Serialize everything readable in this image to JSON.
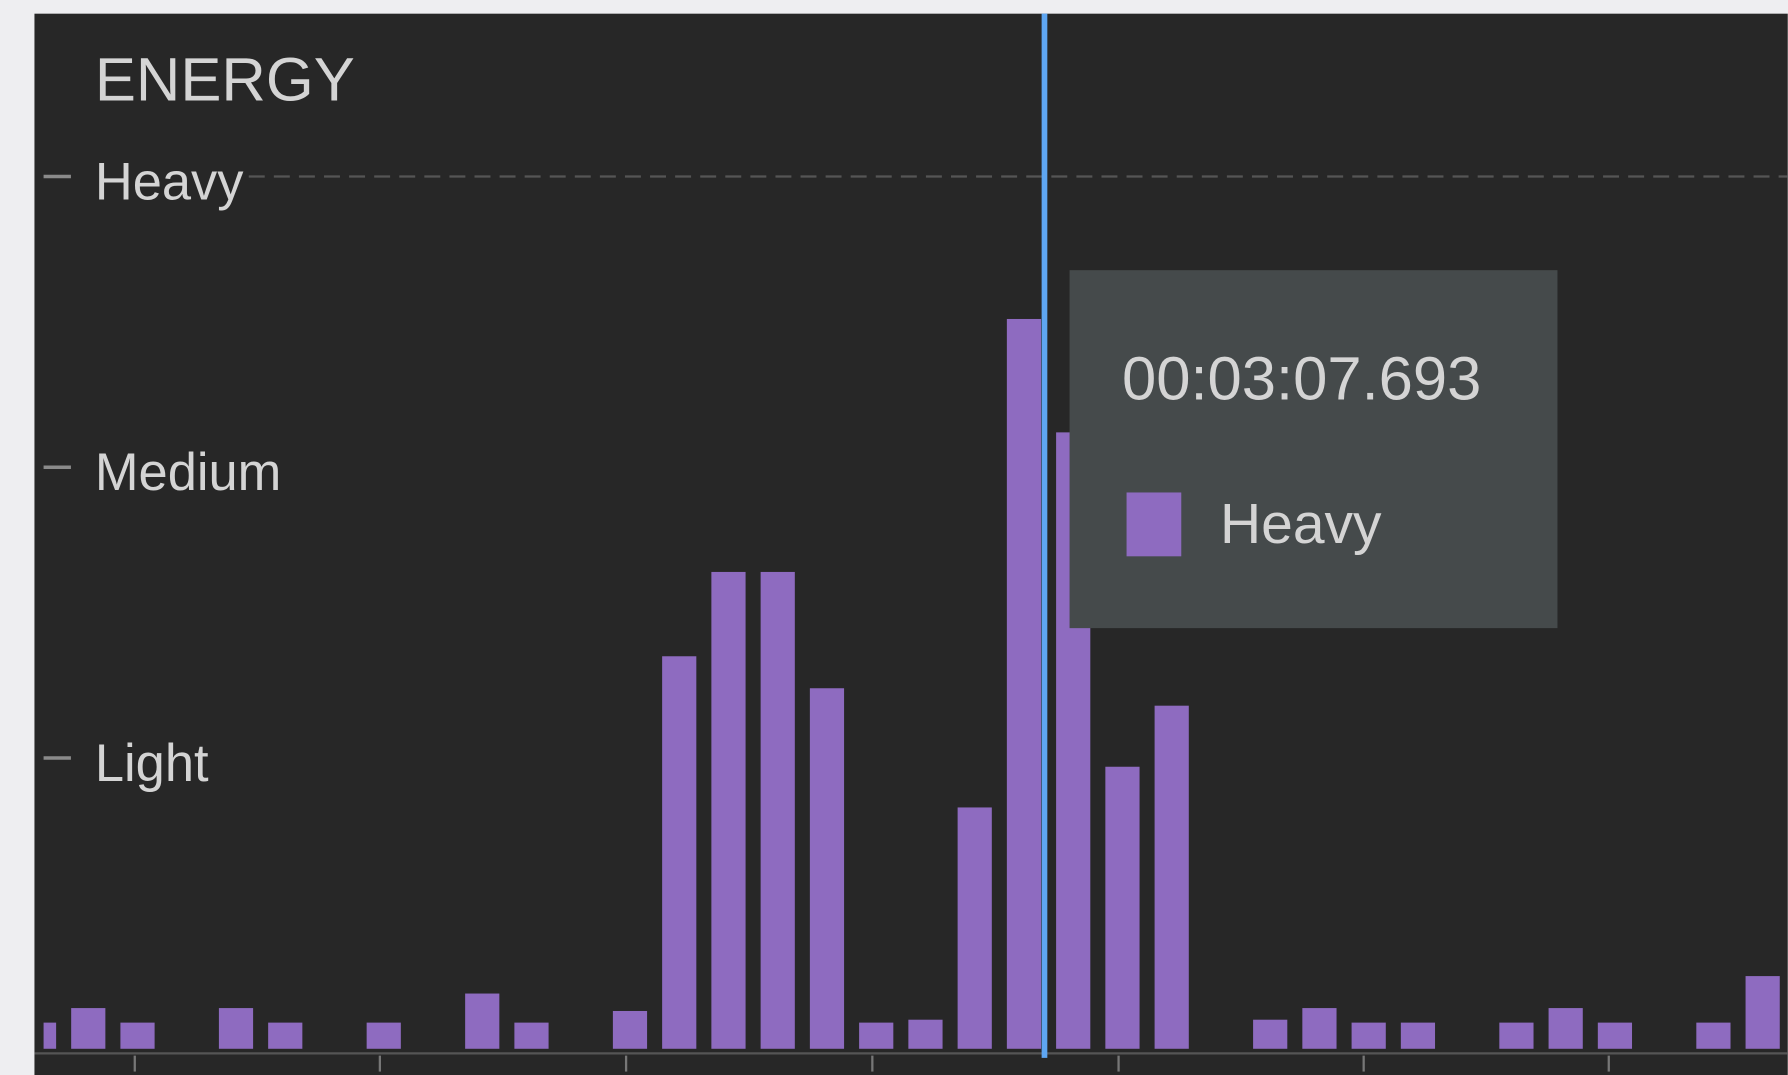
{
  "chart_data": {
    "type": "bar",
    "title": "ENERGY",
    "categories": [
      null,
      null,
      null,
      null,
      null,
      null,
      null,
      null,
      null,
      null,
      null,
      null,
      null,
      null,
      null,
      null,
      null,
      null,
      null,
      null,
      null,
      null,
      null,
      null,
      null,
      null,
      null,
      null,
      null,
      null,
      null,
      null,
      null,
      null,
      null,
      null
    ],
    "values": [
      0.09,
      0.14,
      0.09,
      0,
      0.14,
      0.09,
      0,
      0.09,
      0,
      0.19,
      0.09,
      0,
      0.13,
      1.35,
      1.64,
      1.64,
      1.24,
      0.09,
      0.1,
      0.83,
      2.51,
      2.12,
      0.97,
      1.18,
      0,
      0.1,
      0.14,
      0.09,
      0.09,
      0,
      0.09,
      0.14,
      0.09,
      0,
      0.09,
      0.25
    ],
    "color": "#8e6bc0",
    "ylim": [
      0,
      3.56
    ],
    "yticks": [
      {
        "value": 1,
        "label": "Light"
      },
      {
        "value": 2,
        "label": "Medium"
      },
      {
        "value": 3,
        "label": "Heavy"
      }
    ],
    "tooltip": {
      "title": "00:03:07.693",
      "label": "Heavy",
      "color": "#8e6bc0"
    }
  }
}
